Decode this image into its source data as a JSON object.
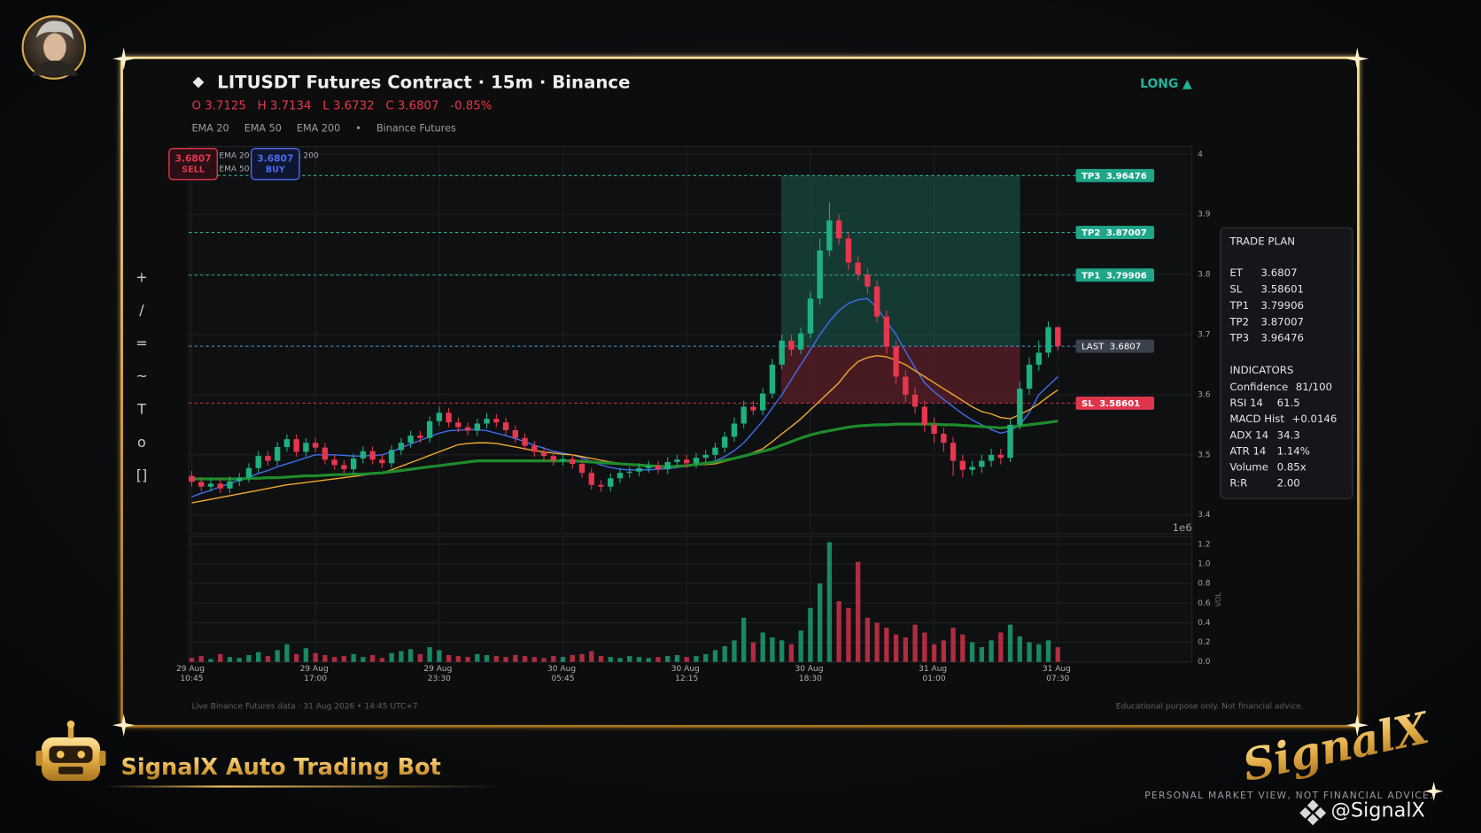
{
  "chart_data": {
    "type": "candlestick",
    "categories": [
      "29 Aug 10:45",
      null,
      null,
      null,
      null,
      null,
      null,
      null,
      null,
      null,
      null,
      null,
      null,
      "29 Aug 17:00",
      null,
      null,
      null,
      null,
      null,
      null,
      null,
      null,
      null,
      null,
      null,
      null,
      "29 Aug 23:30",
      null,
      null,
      null,
      null,
      null,
      null,
      null,
      null,
      null,
      null,
      null,
      null,
      "30 Aug 05:45",
      null,
      null,
      null,
      null,
      null,
      null,
      null,
      null,
      null,
      null,
      null,
      null,
      "30 Aug 12:15",
      null,
      null,
      null,
      null,
      null,
      null,
      null,
      null,
      null,
      null,
      null,
      null,
      "30 Aug 18:30",
      null,
      null,
      null,
      null,
      null,
      null,
      null,
      null,
      null,
      null,
      null,
      null,
      "31 Aug 01:00",
      null,
      null,
      null,
      null,
      null,
      null,
      null,
      null,
      null,
      null,
      null,
      null,
      "31 Aug 07:30"
    ],
    "open": [
      3.465,
      3.455,
      3.447,
      3.452,
      3.444,
      3.456,
      3.462,
      3.478,
      3.498,
      3.49,
      3.513,
      3.526,
      3.505,
      3.52,
      3.512,
      3.492,
      3.483,
      3.476,
      3.494,
      3.506,
      3.492,
      3.486,
      3.508,
      3.52,
      3.532,
      3.528,
      3.556,
      3.57,
      3.554,
      3.546,
      3.54,
      3.552,
      3.56,
      3.554,
      3.541,
      3.528,
      3.515,
      3.505,
      3.498,
      3.49,
      3.493,
      3.485,
      3.47,
      3.45,
      3.447,
      3.461,
      3.47,
      3.472,
      3.478,
      3.482,
      3.476,
      3.488,
      3.492,
      3.486,
      3.495,
      3.5,
      3.512,
      3.53,
      3.552,
      3.58,
      3.574,
      3.602,
      3.65,
      3.69,
      3.675,
      3.702,
      3.76,
      3.84,
      3.89,
      3.86,
      3.82,
      3.8,
      3.78,
      3.73,
      3.68,
      3.63,
      3.6,
      3.58,
      3.55,
      3.535,
      3.52,
      3.49,
      3.475,
      3.48,
      3.49,
      3.5,
      3.495,
      3.55,
      3.61,
      3.65,
      3.67,
      3.7125
    ],
    "high": [
      3.473,
      3.463,
      3.46,
      3.46,
      3.464,
      3.47,
      3.486,
      3.506,
      3.506,
      3.521,
      3.534,
      3.534,
      3.528,
      3.528,
      3.52,
      3.5,
      3.491,
      3.502,
      3.514,
      3.514,
      3.5,
      3.516,
      3.528,
      3.54,
      3.54,
      3.564,
      3.58,
      3.578,
      3.562,
      3.554,
      3.56,
      3.57,
      3.568,
      3.562,
      3.549,
      3.536,
      3.523,
      3.513,
      3.506,
      3.501,
      3.501,
      3.493,
      3.478,
      3.458,
      3.469,
      3.478,
      3.48,
      3.486,
      3.49,
      3.49,
      3.496,
      3.5,
      3.5,
      3.503,
      3.508,
      3.52,
      3.538,
      3.562,
      3.59,
      3.59,
      3.612,
      3.66,
      3.7,
      3.7,
      3.712,
      3.772,
      3.86,
      3.92,
      3.9,
      3.87,
      3.83,
      3.81,
      3.79,
      3.74,
      3.69,
      3.64,
      3.612,
      3.59,
      3.562,
      3.545,
      3.53,
      3.5,
      3.49,
      3.5,
      3.51,
      3.51,
      3.56,
      3.622,
      3.662,
      3.69,
      3.722,
      3.7134
    ],
    "low": [
      3.447,
      3.439,
      3.439,
      3.436,
      3.436,
      3.448,
      3.454,
      3.47,
      3.482,
      3.482,
      3.505,
      3.497,
      3.497,
      3.504,
      3.484,
      3.475,
      3.468,
      3.468,
      3.486,
      3.484,
      3.478,
      3.478,
      3.5,
      3.512,
      3.52,
      3.52,
      3.548,
      3.546,
      3.538,
      3.532,
      3.532,
      3.544,
      3.546,
      3.533,
      3.52,
      3.507,
      3.497,
      3.49,
      3.482,
      3.482,
      3.477,
      3.462,
      3.442,
      3.439,
      3.439,
      3.453,
      3.462,
      3.464,
      3.47,
      3.468,
      3.468,
      3.48,
      3.478,
      3.478,
      3.487,
      3.492,
      3.504,
      3.522,
      3.544,
      3.566,
      3.566,
      3.594,
      3.642,
      3.665,
      3.667,
      3.694,
      3.75,
      3.83,
      3.85,
      3.808,
      3.79,
      3.768,
      3.72,
      3.668,
      3.618,
      3.588,
      3.568,
      3.538,
      3.52,
      3.505,
      3.465,
      3.462,
      3.466,
      3.47,
      3.48,
      3.484,
      3.488,
      3.542,
      3.6,
      3.64,
      3.662,
      3.6732
    ],
    "close": [
      3.455,
      3.447,
      3.452,
      3.444,
      3.456,
      3.462,
      3.478,
      3.498,
      3.49,
      3.513,
      3.526,
      3.505,
      3.52,
      3.512,
      3.492,
      3.483,
      3.476,
      3.494,
      3.506,
      3.492,
      3.486,
      3.508,
      3.52,
      3.532,
      3.528,
      3.556,
      3.57,
      3.554,
      3.546,
      3.54,
      3.552,
      3.56,
      3.554,
      3.541,
      3.528,
      3.515,
      3.505,
      3.498,
      3.49,
      3.493,
      3.485,
      3.47,
      3.45,
      3.447,
      3.461,
      3.47,
      3.472,
      3.478,
      3.482,
      3.476,
      3.488,
      3.492,
      3.486,
      3.495,
      3.5,
      3.512,
      3.53,
      3.552,
      3.58,
      3.574,
      3.602,
      3.65,
      3.69,
      3.675,
      3.702,
      3.76,
      3.84,
      3.89,
      3.86,
      3.82,
      3.8,
      3.78,
      3.73,
      3.68,
      3.63,
      3.6,
      3.58,
      3.55,
      3.535,
      3.52,
      3.49,
      3.475,
      3.48,
      3.49,
      3.5,
      3.495,
      3.55,
      3.61,
      3.65,
      3.67,
      3.7125,
      3.6807
    ],
    "up_color": "#1fb07f",
    "down_color": "#e5374d",
    "ylim": [
      3.369,
      4.013
    ],
    "yticks": [
      3.4,
      3.5,
      3.6,
      3.7,
      3.8,
      3.9,
      4
    ],
    "offset_label": "1e6",
    "grid": true,
    "series": [
      {
        "name": "EMA 20",
        "color": "#3e6ff0",
        "width": 1.3,
        "values": [
          3.43,
          3.436,
          3.441,
          3.447,
          3.452,
          3.458,
          3.463,
          3.469,
          3.474,
          3.48,
          3.485,
          3.49,
          3.495,
          3.5,
          3.5,
          3.5,
          3.499,
          3.498,
          3.498,
          3.499,
          3.5,
          3.505,
          3.512,
          3.518,
          3.524,
          3.53,
          3.536,
          3.54,
          3.541,
          3.542,
          3.542,
          3.54,
          3.536,
          3.532,
          3.527,
          3.522,
          3.516,
          3.511,
          3.506,
          3.503,
          3.5,
          3.495,
          3.489,
          3.483,
          3.479,
          3.476,
          3.475,
          3.475,
          3.475,
          3.476,
          3.477,
          3.479,
          3.481,
          3.483,
          3.486,
          3.49,
          3.497,
          3.507,
          3.52,
          3.538,
          3.556,
          3.578,
          3.6,
          3.625,
          3.65,
          3.675,
          3.7,
          3.722,
          3.74,
          3.752,
          3.758,
          3.76,
          3.745,
          3.722,
          3.7,
          3.672,
          3.645,
          3.62,
          3.605,
          3.592,
          3.58,
          3.568,
          3.558,
          3.55,
          3.542,
          3.536,
          3.54,
          3.55,
          3.57,
          3.6,
          3.615,
          3.63
        ]
      },
      {
        "name": "EMA 50",
        "color": "#f2aa2e",
        "width": 1.3,
        "values": [
          3.42,
          3.423,
          3.426,
          3.429,
          3.432,
          3.435,
          3.438,
          3.441,
          3.444,
          3.447,
          3.45,
          3.452,
          3.454,
          3.456,
          3.458,
          3.46,
          3.462,
          3.464,
          3.466,
          3.468,
          3.47,
          3.475,
          3.481,
          3.487,
          3.493,
          3.499,
          3.505,
          3.511,
          3.517,
          3.519,
          3.52,
          3.52,
          3.519,
          3.516,
          3.513,
          3.51,
          3.507,
          3.505,
          3.503,
          3.501,
          3.5,
          3.497,
          3.494,
          3.491,
          3.488,
          3.486,
          3.484,
          3.482,
          3.48,
          3.48,
          3.481,
          3.481,
          3.482,
          3.483,
          3.484,
          3.485,
          3.489,
          3.493,
          3.498,
          3.504,
          3.51,
          3.522,
          3.535,
          3.547,
          3.56,
          3.575,
          3.59,
          3.605,
          3.62,
          3.64,
          3.655,
          3.662,
          3.665,
          3.663,
          3.657,
          3.65,
          3.64,
          3.63,
          3.62,
          3.61,
          3.6,
          3.59,
          3.58,
          3.572,
          3.568,
          3.562,
          3.56,
          3.567,
          3.575,
          3.585,
          3.597,
          3.608
        ]
      },
      {
        "name": "EMA 200",
        "color": "#1f8c2c",
        "width": 3,
        "values": [
          3.46,
          3.46,
          3.46,
          3.46,
          3.46,
          3.46,
          3.461,
          3.461,
          3.462,
          3.462,
          3.463,
          3.464,
          3.465,
          3.465,
          3.466,
          3.467,
          3.467,
          3.468,
          3.468,
          3.469,
          3.47,
          3.472,
          3.474,
          3.476,
          3.478,
          3.48,
          3.482,
          3.484,
          3.486,
          3.488,
          3.49,
          3.49,
          3.49,
          3.49,
          3.49,
          3.49,
          3.49,
          3.49,
          3.49,
          3.49,
          3.49,
          3.489,
          3.488,
          3.487,
          3.486,
          3.485,
          3.484,
          3.483,
          3.482,
          3.481,
          3.48,
          3.481,
          3.482,
          3.484,
          3.486,
          3.488,
          3.491,
          3.494,
          3.498,
          3.502,
          3.506,
          3.51,
          3.516,
          3.522,
          3.528,
          3.533,
          3.537,
          3.54,
          3.543,
          3.546,
          3.548,
          3.549,
          3.55,
          3.55,
          3.551,
          3.551,
          3.551,
          3.551,
          3.551,
          3.55,
          3.55,
          3.549,
          3.548,
          3.547,
          3.546,
          3.545,
          3.546,
          3.548,
          3.55,
          3.552,
          3.554,
          3.556
        ]
      }
    ],
    "levels": [
      {
        "name": "TP3",
        "value": 3.96476,
        "color": "#1fa589",
        "line_color": "#2bb596"
      },
      {
        "name": "TP2",
        "value": 3.87007,
        "color": "#1fa589",
        "line_color": "#2bb596"
      },
      {
        "name": "TP1",
        "value": 3.79906,
        "color": "#1fa589",
        "line_color": "#2bb596"
      },
      {
        "name": "LAST",
        "value": 3.6807,
        "color": "#3a404c",
        "line_color": "#4f9fdc"
      },
      {
        "name": "SL",
        "value": 3.58601,
        "color": "#e0364b",
        "line_color": "#e0364b"
      }
    ],
    "volume": {
      "label": "VOL",
      "values": [
        0.04,
        0.06,
        0.03,
        0.08,
        0.05,
        0.04,
        0.07,
        0.1,
        0.06,
        0.12,
        0.18,
        0.08,
        0.14,
        0.09,
        0.07,
        0.05,
        0.06,
        0.08,
        0.05,
        0.07,
        0.04,
        0.09,
        0.11,
        0.13,
        0.08,
        0.15,
        0.12,
        0.07,
        0.06,
        0.05,
        0.08,
        0.07,
        0.06,
        0.05,
        0.07,
        0.06,
        0.05,
        0.04,
        0.06,
        0.05,
        0.07,
        0.08,
        0.11,
        0.06,
        0.05,
        0.04,
        0.06,
        0.05,
        0.04,
        0.05,
        0.06,
        0.07,
        0.05,
        0.06,
        0.08,
        0.12,
        0.16,
        0.22,
        0.45,
        0.2,
        0.3,
        0.25,
        0.22,
        0.18,
        0.32,
        0.55,
        0.8,
        1.22,
        0.62,
        0.55,
        1.02,
        0.45,
        0.4,
        0.35,
        0.28,
        0.25,
        0.38,
        0.3,
        0.18,
        0.22,
        0.35,
        0.28,
        0.2,
        0.15,
        0.22,
        0.3,
        0.38,
        0.26,
        0.2,
        0.18,
        0.22,
        0.15
      ],
      "ylim": [
        0,
        1.28
      ],
      "yticks": [
        {
          "value": 0,
          "label": "0.0"
        },
        0.2,
        0.4,
        0.6,
        0.8,
        {
          "value": 1,
          "label": "1.0"
        },
        1.2
      ]
    }
  },
  "page": {
    "header": {
      "title": "LITUSDT Futures Contract  ·  15m  ·  Binance",
      "side": "LONG ▲",
      "ohlc_labels": [
        "O",
        "H",
        "L",
        "C"
      ],
      "change": "-0.85%",
      "legend_separator": "•",
      "source": "Binance Futures"
    },
    "buttons": [
      {
        "price": 3.6807,
        "label": "SELL"
      },
      {
        "price": 3.6807,
        "label": "BUY"
      }
    ],
    "toolbar": [
      "+",
      "/",
      "=",
      "~",
      "T",
      "o",
      "[]"
    ],
    "trade_plan": {
      "title": "TRADE PLAN",
      "rows": [
        {
          "label": "ET",
          "value": 3.6807
        },
        {
          "label": "SL",
          "value": 3.58601
        },
        {
          "label": "TP1",
          "value": 3.79906
        },
        {
          "label": "TP2",
          "value": 3.87007
        },
        {
          "label": "TP3",
          "value": 3.96476
        }
      ]
    },
    "indicators": {
      "title": "INDICATORS",
      "rows": [
        [
          "Confidence",
          "81/100"
        ],
        [
          "RSI 14",
          "61.5"
        ],
        [
          "MACD Hist",
          "+0.0146"
        ],
        [
          "ADX 14",
          "34.3"
        ],
        [
          "ATR 14",
          "1.14%"
        ],
        [
          "Volume",
          "0.85x"
        ],
        [
          "R:R",
          "2.00"
        ]
      ]
    },
    "footer": {
      "data_note": "Live Binance Futures data  ·  31 Aug 2026 • 14:45 UTC+7",
      "disclaimer": "Educational purpose only. Not financial advice."
    },
    "brand": {
      "bot_name": "SignalX Auto Trading Bot",
      "logo": "SignalX",
      "tagline": "PERSONAL MARKET VIEW, NOT FINANCIAL ADVICE.",
      "handle": "@SignalX"
    }
  }
}
